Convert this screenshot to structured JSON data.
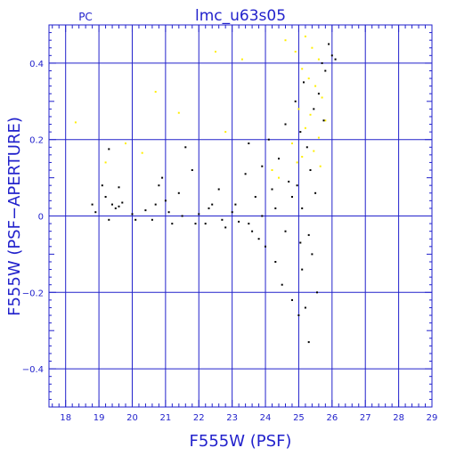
{
  "chart_data": {
    "type": "scatter",
    "title": "lmc_u63s05",
    "corner_label": "PC",
    "xlabel": "F555W (PSF)",
    "ylabel": "F555W (PSF−APERTURE)",
    "xlim": [
      17.5,
      29
    ],
    "ylim": [
      -0.5,
      0.5
    ],
    "x_ticks": [
      "18",
      "19",
      "20",
      "21",
      "22",
      "23",
      "24",
      "25",
      "26",
      "27",
      "28",
      "29"
    ],
    "y_ticks": [
      "0.4",
      "0.2",
      "0",
      "−0.2",
      "−0.4"
    ],
    "grid": true,
    "colors": {
      "axes": "#2222cc",
      "points": "#000000",
      "highlight": "#ffee00"
    },
    "series": [
      {
        "color": "#ffee00",
        "points": [
          [
            18.3,
            0.245
          ],
          [
            20.7,
            0.325
          ],
          [
            21.4,
            0.27
          ],
          [
            22.5,
            0.43
          ],
          [
            22.8,
            0.22
          ],
          [
            20.3,
            0.165
          ],
          [
            19.8,
            0.19
          ],
          [
            23.3,
            0.41
          ],
          [
            24.2,
            0.12
          ],
          [
            24.6,
            0.46
          ],
          [
            24.9,
            0.43
          ],
          [
            25.2,
            0.47
          ],
          [
            25.4,
            0.44
          ],
          [
            25.6,
            0.41
          ],
          [
            25.1,
            0.385
          ],
          [
            25.3,
            0.36
          ],
          [
            25.5,
            0.34
          ],
          [
            25.7,
            0.31
          ],
          [
            25.0,
            0.28
          ],
          [
            25.35,
            0.265
          ],
          [
            25.8,
            0.25
          ],
          [
            25.2,
            0.23
          ],
          [
            25.6,
            0.205
          ],
          [
            24.8,
            0.19
          ],
          [
            25.45,
            0.17
          ],
          [
            25.1,
            0.155
          ],
          [
            24.95,
            0.14
          ],
          [
            25.65,
            0.13
          ],
          [
            24.4,
            0.1
          ],
          [
            19.2,
            0.14
          ]
        ]
      },
      {
        "color": "#000000",
        "points": [
          [
            18.8,
            0.03
          ],
          [
            18.9,
            0.01
          ],
          [
            19.1,
            0.08
          ],
          [
            19.2,
            0.05
          ],
          [
            19.3,
            -0.01
          ],
          [
            19.4,
            0.03
          ],
          [
            19.5,
            0.02
          ],
          [
            19.6,
            0.025
          ],
          [
            19.7,
            0.035
          ],
          [
            19.3,
            0.175
          ],
          [
            19.6,
            0.075
          ],
          [
            20.0,
            0.005
          ],
          [
            20.1,
            -0.01
          ],
          [
            20.4,
            0.015
          ],
          [
            20.7,
            0.03
          ],
          [
            20.8,
            0.08
          ],
          [
            20.9,
            0.1
          ],
          [
            21.0,
            0.04
          ],
          [
            21.1,
            0.01
          ],
          [
            21.2,
            -0.02
          ],
          [
            21.4,
            0.06
          ],
          [
            21.6,
            0.18
          ],
          [
            21.8,
            0.12
          ],
          [
            22.0,
            0.005
          ],
          [
            22.2,
            -0.02
          ],
          [
            22.4,
            0.03
          ],
          [
            22.6,
            0.07
          ],
          [
            22.8,
            -0.03
          ],
          [
            23.0,
            0.01
          ],
          [
            23.2,
            -0.015
          ],
          [
            23.4,
            0.11
          ],
          [
            23.5,
            0.19
          ],
          [
            23.6,
            -0.04
          ],
          [
            23.7,
            0.05
          ],
          [
            23.8,
            -0.06
          ],
          [
            23.9,
            0.13
          ],
          [
            24.0,
            -0.08
          ],
          [
            24.1,
            0.2
          ],
          [
            24.2,
            0.07
          ],
          [
            24.3,
            -0.12
          ],
          [
            24.4,
            0.15
          ],
          [
            24.5,
            -0.18
          ],
          [
            24.6,
            0.24
          ],
          [
            24.7,
            0.09
          ],
          [
            24.8,
            -0.22
          ],
          [
            24.9,
            0.3
          ],
          [
            25.0,
            -0.26
          ],
          [
            25.05,
            0.22
          ],
          [
            25.1,
            -0.14
          ],
          [
            25.15,
            0.35
          ],
          [
            25.2,
            -0.24
          ],
          [
            25.25,
            0.18
          ],
          [
            25.3,
            -0.33
          ],
          [
            25.35,
            0.12
          ],
          [
            25.4,
            -0.1
          ],
          [
            25.45,
            0.28
          ],
          [
            25.5,
            0.06
          ],
          [
            25.55,
            -0.2
          ],
          [
            25.6,
            0.32
          ],
          [
            25.7,
            0.4
          ],
          [
            25.75,
            0.25
          ],
          [
            25.8,
            0.38
          ],
          [
            25.9,
            0.45
          ],
          [
            26.0,
            0.42
          ],
          [
            26.1,
            0.41
          ],
          [
            25.3,
            -0.05
          ],
          [
            25.1,
            0.02
          ],
          [
            24.8,
            0.05
          ],
          [
            24.6,
            -0.04
          ],
          [
            24.3,
            0.02
          ],
          [
            23.9,
            0.0
          ],
          [
            23.5,
            -0.02
          ],
          [
            23.1,
            0.03
          ],
          [
            22.7,
            -0.01
          ],
          [
            22.3,
            0.02
          ],
          [
            21.9,
            -0.02
          ],
          [
            21.5,
            0.0
          ],
          [
            20.6,
            -0.01
          ],
          [
            24.95,
            0.08
          ],
          [
            25.05,
            -0.07
          ]
        ]
      }
    ]
  }
}
